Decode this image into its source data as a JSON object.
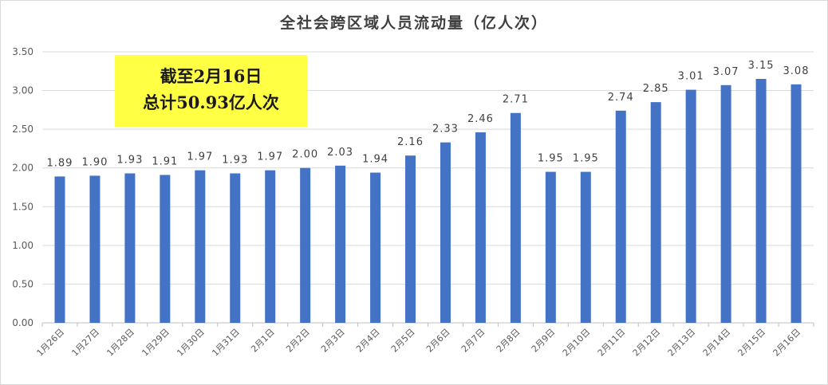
{
  "chart_data": {
    "type": "bar",
    "title": "全社会跨区域人员流动量（亿人次）",
    "categories": [
      "1月26日",
      "1月27日",
      "1月28日",
      "1月29日",
      "1月30日",
      "1月31日",
      "2月1日",
      "2月2日",
      "2月3日",
      "2月4日",
      "2月5日",
      "2月6日",
      "2月7日",
      "2月8日",
      "2月9日",
      "2月10日",
      "2月11日",
      "2月12日",
      "2月13日",
      "2月14日",
      "2月15日",
      "2月16日"
    ],
    "values": [
      1.89,
      1.9,
      1.93,
      1.91,
      1.97,
      1.93,
      1.97,
      2.0,
      2.03,
      1.94,
      2.16,
      2.33,
      2.46,
      2.71,
      1.95,
      1.95,
      2.74,
      2.85,
      3.01,
      3.07,
      3.15,
      3.08
    ],
    "value_labels": [
      "1.89",
      "1.90",
      "1.93",
      "1.91",
      "1.97",
      "1.93",
      "1.97",
      "2.00",
      "2.03",
      "1.94",
      "2.16",
      "2.33",
      "2.46",
      "2.71",
      "1.95",
      "1.95",
      "2.74",
      "2.85",
      "3.01",
      "3.07",
      "3.15",
      "3.08"
    ],
    "ylim": [
      0,
      3.5
    ],
    "yticks": [
      "0.00",
      "0.50",
      "1.00",
      "1.50",
      "2.00",
      "2.50",
      "3.00",
      "3.50"
    ],
    "grid": true,
    "legend": "none",
    "bar_color": "#4472c4",
    "annotation": {
      "line1": "截至2月16日",
      "line2": "总计50.93亿人次",
      "background": "#ffff44"
    }
  }
}
